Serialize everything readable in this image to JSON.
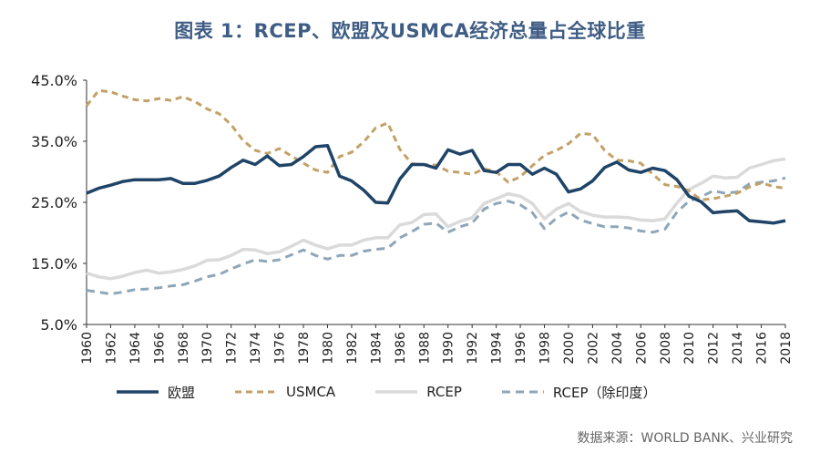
{
  "title": "图表 1：RCEP、欧盟及USMCA经济总量占全球比重",
  "source": "数据来源：WORLD BANK、兴业研究",
  "colors": {
    "eu": "#1f4468",
    "usmca": "#c3a167",
    "rcep": "#dadada",
    "rcep_ex_india": "#8fa6b8"
  },
  "chart_data": {
    "type": "line",
    "x": [
      1960,
      1961,
      1962,
      1963,
      1964,
      1965,
      1966,
      1967,
      1968,
      1969,
      1970,
      1971,
      1972,
      1973,
      1974,
      1975,
      1976,
      1977,
      1978,
      1979,
      1980,
      1981,
      1982,
      1983,
      1984,
      1985,
      1986,
      1987,
      1988,
      1989,
      1990,
      1991,
      1992,
      1993,
      1994,
      1995,
      1996,
      1997,
      1998,
      1999,
      2000,
      2001,
      2002,
      2003,
      2004,
      2005,
      2006,
      2007,
      2008,
      2009,
      2010,
      2011,
      2012,
      2013,
      2014,
      2015,
      2016,
      2017,
      2018
    ],
    "x_ticks": [
      "1960",
      "1962",
      "1964",
      "1966",
      "1968",
      "1970",
      "1972",
      "1974",
      "1976",
      "1978",
      "1980",
      "1982",
      "1984",
      "1986",
      "1988",
      "1990",
      "1992",
      "1994",
      "1996",
      "1998",
      "2000",
      "2002",
      "2004",
      "2006",
      "2008",
      "2010",
      "2012",
      "2014",
      "2016",
      "2018"
    ],
    "y_ticks": [
      "45.0%",
      "35.0%",
      "25.0%",
      "15.0%",
      "5.0%"
    ],
    "ylim": [
      5,
      45
    ],
    "grid": false,
    "legend_position": "bottom",
    "series": [
      {
        "key": "eu",
        "name": "欧盟",
        "style": "solid",
        "values": [
          26.5,
          27.3,
          27.8,
          28.4,
          28.7,
          28.7,
          28.7,
          28.9,
          28.1,
          28.1,
          28.6,
          29.3,
          30.7,
          31.9,
          31.2,
          32.6,
          31.0,
          31.2,
          32.5,
          34.1,
          34.3,
          29.3,
          28.5,
          27.0,
          25.0,
          24.9,
          28.8,
          31.2,
          31.2,
          30.6,
          33.6,
          32.9,
          33.5,
          30.2,
          29.9,
          31.2,
          31.2,
          29.6,
          30.6,
          29.6,
          26.7,
          27.2,
          28.5,
          30.7,
          31.6,
          30.3,
          29.9,
          30.6,
          30.2,
          28.7,
          26.0,
          25.1,
          23.3,
          23.5,
          23.6,
          22.0,
          21.8,
          21.6,
          22.0
        ]
      },
      {
        "key": "usmca",
        "name": "USMCA",
        "style": "dashed",
        "values": [
          40.8,
          43.3,
          43.1,
          42.4,
          41.8,
          41.6,
          42.0,
          41.7,
          42.3,
          41.5,
          40.3,
          39.5,
          37.7,
          35.1,
          33.5,
          33.0,
          33.8,
          32.6,
          31.4,
          30.3,
          29.9,
          32.5,
          33.2,
          34.9,
          37.2,
          38.0,
          33.7,
          31.3,
          31.2,
          31.1,
          30.1,
          29.9,
          29.6,
          30.5,
          30.0,
          28.3,
          29.2,
          31.0,
          32.7,
          33.5,
          34.6,
          36.3,
          36.1,
          33.5,
          31.9,
          31.8,
          31.4,
          29.6,
          27.9,
          27.6,
          26.9,
          25.4,
          25.6,
          26.0,
          26.5,
          27.5,
          28.2,
          27.6,
          27.3
        ]
      },
      {
        "key": "rcep",
        "name": "RCEP",
        "style": "solid",
        "values": [
          13.4,
          12.8,
          12.5,
          12.9,
          13.5,
          13.9,
          13.4,
          13.6,
          14.0,
          14.6,
          15.5,
          15.6,
          16.3,
          17.3,
          17.2,
          16.6,
          16.9,
          17.8,
          18.8,
          18.0,
          17.4,
          18.0,
          18.0,
          18.8,
          19.2,
          19.2,
          21.3,
          21.7,
          23.0,
          23.1,
          21.0,
          21.9,
          22.5,
          24.8,
          25.6,
          26.4,
          26.0,
          24.8,
          22.3,
          23.9,
          24.8,
          23.5,
          22.9,
          22.6,
          22.6,
          22.5,
          22.1,
          22.0,
          22.3,
          24.9,
          27.1,
          28.1,
          29.3,
          29.0,
          29.1,
          30.6,
          31.2,
          31.8,
          32.1
        ]
      },
      {
        "key": "rcep_ex_india",
        "name": "RCEP（除印度）",
        "style": "dashed",
        "values": [
          10.6,
          10.3,
          10.0,
          10.3,
          10.7,
          10.8,
          11.0,
          11.3,
          11.5,
          12.1,
          12.8,
          13.2,
          14.1,
          14.9,
          15.6,
          15.3,
          15.6,
          16.4,
          17.2,
          16.3,
          15.7,
          16.3,
          16.3,
          17.0,
          17.3,
          17.5,
          19.2,
          20.2,
          21.4,
          21.6,
          20.1,
          21.0,
          21.6,
          23.9,
          24.8,
          25.2,
          24.6,
          23.3,
          20.7,
          22.4,
          23.4,
          22.1,
          21.5,
          21.0,
          21.0,
          20.8,
          20.3,
          20.1,
          20.6,
          23.4,
          25.2,
          25.9,
          26.9,
          26.5,
          26.7,
          28.0,
          28.3,
          28.5,
          29.0
        ]
      }
    ]
  }
}
